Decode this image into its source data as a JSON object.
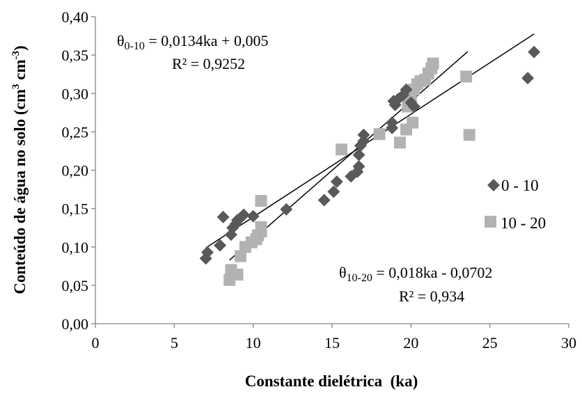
{
  "chart_data": {
    "type": "scatter",
    "xlabel": "Constante dielétrica  (ka)",
    "ylabel": "Conteúdo de água no solo (cm³ cm⁻³)",
    "ylabel_parts": {
      "main": "Conteúdo de água no solo (cm",
      "sup1": "3",
      "mid": " cm",
      "sup2": "-3",
      "end": ")"
    },
    "xlim": [
      0,
      30
    ],
    "ylim": [
      0,
      0.4
    ],
    "x_ticks": [
      "0",
      "5",
      "10",
      "15",
      "20",
      "25",
      "30"
    ],
    "y_ticks": [
      "0,00",
      "0,05",
      "0,10",
      "0,15",
      "0,20",
      "0,25",
      "0,30",
      "0,35",
      "0,40"
    ],
    "grid": false,
    "legend_position": "right",
    "series": [
      {
        "name": "0 - 10",
        "marker": "diamond",
        "color": "#595959",
        "points": [
          [
            7.0,
            0.085
          ],
          [
            7.1,
            0.093
          ],
          [
            7.9,
            0.102
          ],
          [
            8.1,
            0.139
          ],
          [
            8.6,
            0.116
          ],
          [
            8.7,
            0.125
          ],
          [
            8.9,
            0.13
          ],
          [
            9.0,
            0.135
          ],
          [
            9.2,
            0.138
          ],
          [
            9.4,
            0.142
          ],
          [
            10.0,
            0.14
          ],
          [
            12.1,
            0.149
          ],
          [
            14.5,
            0.161
          ],
          [
            15.1,
            0.172
          ],
          [
            15.3,
            0.185
          ],
          [
            16.2,
            0.192
          ],
          [
            16.6,
            0.198
          ],
          [
            16.7,
            0.205
          ],
          [
            16.7,
            0.22
          ],
          [
            16.8,
            0.232
          ],
          [
            17.0,
            0.238
          ],
          [
            17.0,
            0.246
          ],
          [
            18.8,
            0.255
          ],
          [
            18.8,
            0.262
          ],
          [
            18.9,
            0.29
          ],
          [
            19.0,
            0.285
          ],
          [
            19.2,
            0.293
          ],
          [
            19.5,
            0.298
          ],
          [
            19.7,
            0.305
          ],
          [
            20.0,
            0.288
          ],
          [
            20.2,
            0.283
          ],
          [
            27.4,
            0.32
          ],
          [
            27.8,
            0.354
          ]
        ]
      },
      {
        "name": "10 - 20",
        "marker": "square",
        "color": "#b2b2b2",
        "points": [
          [
            8.5,
            0.057
          ],
          [
            8.6,
            0.07
          ],
          [
            9.0,
            0.064
          ],
          [
            9.2,
            0.088
          ],
          [
            9.5,
            0.1
          ],
          [
            9.9,
            0.106
          ],
          [
            10.2,
            0.11
          ],
          [
            10.3,
            0.115
          ],
          [
            10.5,
            0.12
          ],
          [
            10.5,
            0.126
          ],
          [
            10.5,
            0.16
          ],
          [
            15.6,
            0.227
          ],
          [
            18.0,
            0.247
          ],
          [
            19.3,
            0.236
          ],
          [
            19.7,
            0.253
          ],
          [
            19.8,
            0.283
          ],
          [
            19.9,
            0.29
          ],
          [
            20.0,
            0.297
          ],
          [
            20.1,
            0.262
          ],
          [
            20.2,
            0.305
          ],
          [
            20.4,
            0.312
          ],
          [
            20.6,
            0.316
          ],
          [
            20.9,
            0.318
          ],
          [
            21.1,
            0.326
          ],
          [
            21.3,
            0.333
          ],
          [
            21.4,
            0.339
          ],
          [
            23.5,
            0.322
          ],
          [
            23.7,
            0.246
          ]
        ]
      }
    ],
    "trendlines": [
      {
        "series": "0 - 10",
        "slope": 0.0134,
        "intercept": 0.005,
        "x_range": [
          7.0,
          27.8
        ]
      },
      {
        "series": "10 - 20",
        "slope": 0.018,
        "intercept": -0.0702,
        "x_range": [
          8.5,
          23.6
        ]
      }
    ],
    "annotations": [
      {
        "theta": "θ",
        "sub": "0-10",
        "eq": " = 0,0134ka + 0,005",
        "r2": "R² = 0,9252"
      },
      {
        "theta": "θ",
        "sub": "10-20",
        "eq": " = 0,018ka - 0,0702",
        "r2": "R² = 0,934"
      }
    ]
  }
}
